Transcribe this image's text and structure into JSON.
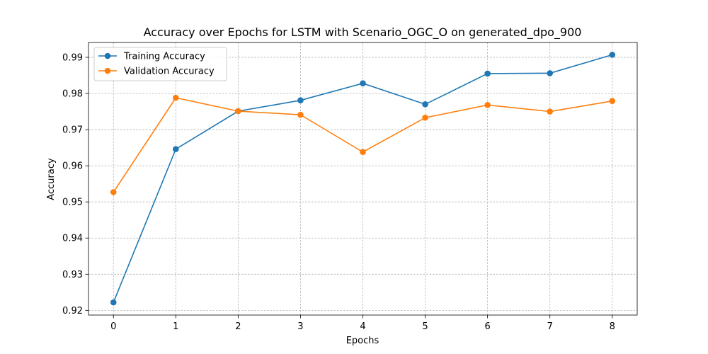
{
  "chart_data": {
    "type": "line",
    "title": "Accuracy over Epochs for LSTM with Scenario_OGC_O on generated_dpo_900",
    "xlabel": "Epochs",
    "ylabel": "Accuracy",
    "x": [
      0,
      1,
      2,
      3,
      4,
      5,
      6,
      7,
      8
    ],
    "xlim": [
      -0.4,
      8.4
    ],
    "ylim": [
      0.9187,
      0.9941
    ],
    "xticks": [
      "0",
      "1",
      "2",
      "3",
      "4",
      "5",
      "6",
      "7",
      "8"
    ],
    "yticks": [
      "0.92",
      "0.93",
      "0.94",
      "0.95",
      "0.96",
      "0.97",
      "0.98",
      "0.99"
    ],
    "grid": true,
    "legend_position": "top-left",
    "series": [
      {
        "name": "Training Accuracy",
        "color": "#1f77b4",
        "values": [
          0.9222,
          0.9646,
          0.9751,
          0.9781,
          0.9828,
          0.977,
          0.9855,
          0.9856,
          0.9907
        ]
      },
      {
        "name": "Validation Accuracy",
        "color": "#ff7f0e",
        "values": [
          0.9527,
          0.9788,
          0.9751,
          0.9741,
          0.9638,
          0.9733,
          0.9768,
          0.975,
          0.9779
        ]
      }
    ]
  }
}
